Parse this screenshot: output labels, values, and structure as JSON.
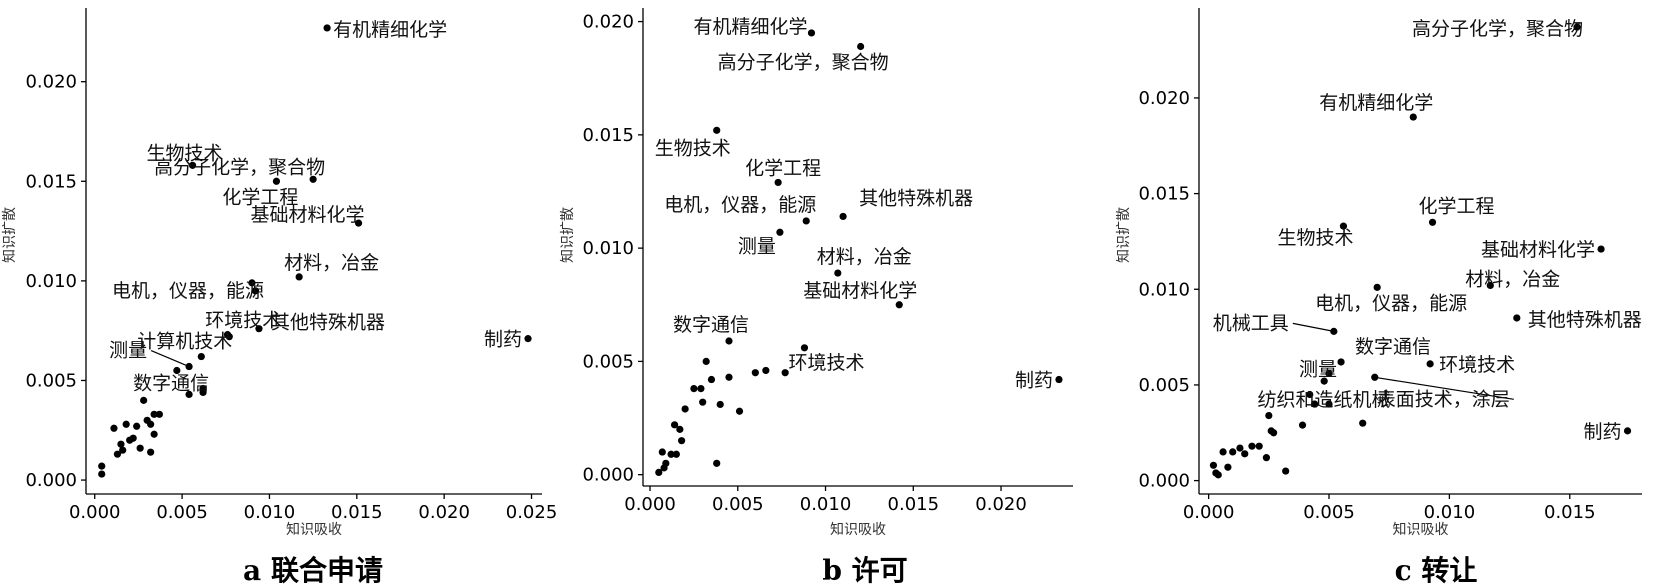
{
  "chart_data": [
    {
      "type": "scatter",
      "caption": "a 联合申请",
      "xlabel": "知识吸收",
      "ylabel": "知识扩散",
      "xlim": [
        -0.0005,
        0.0256
      ],
      "ylim": [
        -0.0007,
        0.0237
      ],
      "xticks": [
        0.0,
        0.005,
        0.01,
        0.015,
        0.02,
        0.025
      ],
      "xtick_labels": [
        "0.000",
        "0.005",
        "0.010",
        "0.015",
        "0.020",
        "0.025"
      ],
      "yticks": [
        0.0,
        0.005,
        0.01,
        0.015,
        0.02
      ],
      "ytick_labels": [
        "0.000",
        "0.005",
        "0.010",
        "0.015",
        "0.020"
      ],
      "labeled_points": [
        {
          "label": "有机精细化学",
          "x": 0.0133,
          "y": 0.0227
        },
        {
          "label": "生物技术",
          "x": 0.0056,
          "y": 0.0158
        },
        {
          "label": "高分子化学，聚合物",
          "x": 0.0125,
          "y": 0.0151
        },
        {
          "label": "化学工程",
          "x": 0.0104,
          "y": 0.015
        },
        {
          "label": "基础材料化学",
          "x": 0.0151,
          "y": 0.0129
        },
        {
          "label": "材料，冶金",
          "x": 0.0117,
          "y": 0.0102
        },
        {
          "label": "电机，仪器，能源",
          "x": 0.009,
          "y": 0.0099
        },
        {
          "label": "环境技术",
          "x": 0.0077,
          "y": 0.0072
        },
        {
          "label": "其他特殊机器",
          "x": 0.0094,
          "y": 0.0076
        },
        {
          "label": "制药",
          "x": 0.0248,
          "y": 0.0071
        },
        {
          "label": "计算机技术",
          "x": 0.0061,
          "y": 0.0062
        },
        {
          "label": "测量",
          "x": 0.0054,
          "y": 0.0057
        },
        {
          "label": "数字通信",
          "x": 0.0054,
          "y": 0.0043
        }
      ],
      "other_points": [
        [
          0.0004,
          0.0007
        ],
        [
          0.0004,
          0.0003
        ],
        [
          0.0011,
          0.0026
        ],
        [
          0.0013,
          0.0013
        ],
        [
          0.0015,
          0.0018
        ],
        [
          0.0016,
          0.0015
        ],
        [
          0.0018,
          0.0028
        ],
        [
          0.002,
          0.002
        ],
        [
          0.0022,
          0.0021
        ],
        [
          0.0024,
          0.0027
        ],
        [
          0.0026,
          0.0016
        ],
        [
          0.0028,
          0.004
        ],
        [
          0.003,
          0.003
        ],
        [
          0.0032,
          0.0014
        ],
        [
          0.0032,
          0.0028
        ],
        [
          0.0034,
          0.0023
        ],
        [
          0.0034,
          0.0033
        ],
        [
          0.0037,
          0.0033
        ],
        [
          0.0047,
          0.0055
        ],
        [
          0.0062,
          0.0044
        ],
        [
          0.0062,
          0.0046
        ],
        [
          0.0076,
          0.0073
        ],
        [
          0.0092,
          0.0095
        ]
      ]
    },
    {
      "type": "scatter",
      "caption": "b 许可",
      "xlabel": "知识吸收",
      "ylabel": "知识扩散",
      "xlim": [
        -0.0004,
        0.0241
      ],
      "ylim": [
        -0.0005,
        0.0206
      ],
      "xticks": [
        0.0,
        0.005,
        0.01,
        0.015,
        0.02
      ],
      "xtick_labels": [
        "0.000",
        "0.005",
        "0.010",
        "0.015",
        "0.020"
      ],
      "yticks": [
        0.0,
        0.005,
        0.01,
        0.015,
        0.02
      ],
      "ytick_labels": [
        "0.000",
        "0.005",
        "0.010",
        "0.015",
        "0.020"
      ],
      "labeled_points": [
        {
          "label": "有机精细化学",
          "x": 0.0092,
          "y": 0.0195
        },
        {
          "label": "高分子化学，聚合物",
          "x": 0.012,
          "y": 0.0189
        },
        {
          "label": "生物技术",
          "x": 0.0038,
          "y": 0.0152
        },
        {
          "label": "化学工程",
          "x": 0.0073,
          "y": 0.0129
        },
        {
          "label": "电机，仪器，能源",
          "x": 0.0089,
          "y": 0.0112
        },
        {
          "label": "其他特殊机器",
          "x": 0.011,
          "y": 0.0114
        },
        {
          "label": "测量",
          "x": 0.0074,
          "y": 0.0107
        },
        {
          "label": "材料，冶金",
          "x": 0.0107,
          "y": 0.0089
        },
        {
          "label": "基础材料化学",
          "x": 0.0142,
          "y": 0.0075
        },
        {
          "label": "数字通信",
          "x": 0.0045,
          "y": 0.0059
        },
        {
          "label": "环境技术",
          "x": 0.0088,
          "y": 0.0056
        },
        {
          "label": "制药",
          "x": 0.0233,
          "y": 0.0042
        }
      ],
      "other_points": [
        [
          0.0005,
          0.0001
        ],
        [
          0.0007,
          0.001
        ],
        [
          0.0008,
          0.0003
        ],
        [
          0.0009,
          0.0005
        ],
        [
          0.0012,
          0.0009
        ],
        [
          0.0014,
          0.0022
        ],
        [
          0.0015,
          0.0009
        ],
        [
          0.0017,
          0.002
        ],
        [
          0.0018,
          0.0015
        ],
        [
          0.002,
          0.0029
        ],
        [
          0.0025,
          0.0038
        ],
        [
          0.0029,
          0.0038
        ],
        [
          0.003,
          0.0032
        ],
        [
          0.0032,
          0.005
        ],
        [
          0.0035,
          0.0042
        ],
        [
          0.0038,
          0.0005
        ],
        [
          0.004,
          0.0031
        ],
        [
          0.0045,
          0.0043
        ],
        [
          0.0051,
          0.0028
        ],
        [
          0.006,
          0.0045
        ],
        [
          0.0066,
          0.0046
        ],
        [
          0.0077,
          0.0045
        ]
      ]
    },
    {
      "type": "scatter",
      "caption": "c 转让",
      "xlabel": "知识吸收",
      "ylabel": "知识扩散",
      "xlim": [
        -0.0004,
        0.018
      ],
      "ylim": [
        -0.0007,
        0.0247
      ],
      "xticks": [
        0.0,
        0.005,
        0.01,
        0.015
      ],
      "xtick_labels": [
        "0.000",
        "0.005",
        "0.010",
        "0.015"
      ],
      "yticks": [
        0.0,
        0.005,
        0.01,
        0.015,
        0.02
      ],
      "ytick_labels": [
        "0.000",
        "0.005",
        "0.010",
        "0.015",
        "0.020"
      ],
      "labeled_points": [
        {
          "label": "高分子化学，聚合物",
          "x": 0.0153,
          "y": 0.0237
        },
        {
          "label": "有机精细化学",
          "x": 0.0085,
          "y": 0.019
        },
        {
          "label": "化学工程",
          "x": 0.0093,
          "y": 0.0135
        },
        {
          "label": "生物技术",
          "x": 0.0056,
          "y": 0.0133
        },
        {
          "label": "基础材料化学",
          "x": 0.0163,
          "y": 0.0121
        },
        {
          "label": "材料，冶金",
          "x": 0.0117,
          "y": 0.0102
        },
        {
          "label": "电机，仪器，能源",
          "x": 0.007,
          "y": 0.0101
        },
        {
          "label": "其他特殊机器",
          "x": 0.0128,
          "y": 0.0085
        },
        {
          "label": "机械工具",
          "x": 0.0052,
          "y": 0.0078
        },
        {
          "label": "数字通信",
          "x": 0.0055,
          "y": 0.0062
        },
        {
          "label": "环境技术",
          "x": 0.0092,
          "y": 0.0061
        },
        {
          "label": "测量",
          "x": 0.005,
          "y": 0.0056
        },
        {
          "label": "表面技术，涂层",
          "x": 0.0069,
          "y": 0.0054
        },
        {
          "label": "纺织和造纸机械",
          "x": 0.0044,
          "y": 0.004
        },
        {
          "label": "制药",
          "x": 0.0174,
          "y": 0.0026
        }
      ],
      "other_points": [
        [
          0.0002,
          0.0008
        ],
        [
          0.0003,
          0.0004
        ],
        [
          0.0004,
          0.0003
        ],
        [
          0.0006,
          0.0015
        ],
        [
          0.0008,
          0.0007
        ],
        [
          0.001,
          0.0015
        ],
        [
          0.0013,
          0.0017
        ],
        [
          0.0015,
          0.0014
        ],
        [
          0.0018,
          0.0018
        ],
        [
          0.0021,
          0.0018
        ],
        [
          0.0024,
          0.0012
        ],
        [
          0.0025,
          0.0034
        ],
        [
          0.0026,
          0.0026
        ],
        [
          0.0027,
          0.0025
        ],
        [
          0.0032,
          0.0005
        ],
        [
          0.0039,
          0.0029
        ],
        [
          0.0042,
          0.0045
        ],
        [
          0.0044,
          0.004
        ],
        [
          0.0048,
          0.0052
        ],
        [
          0.005,
          0.004
        ],
        [
          0.0064,
          0.003
        ]
      ]
    }
  ]
}
